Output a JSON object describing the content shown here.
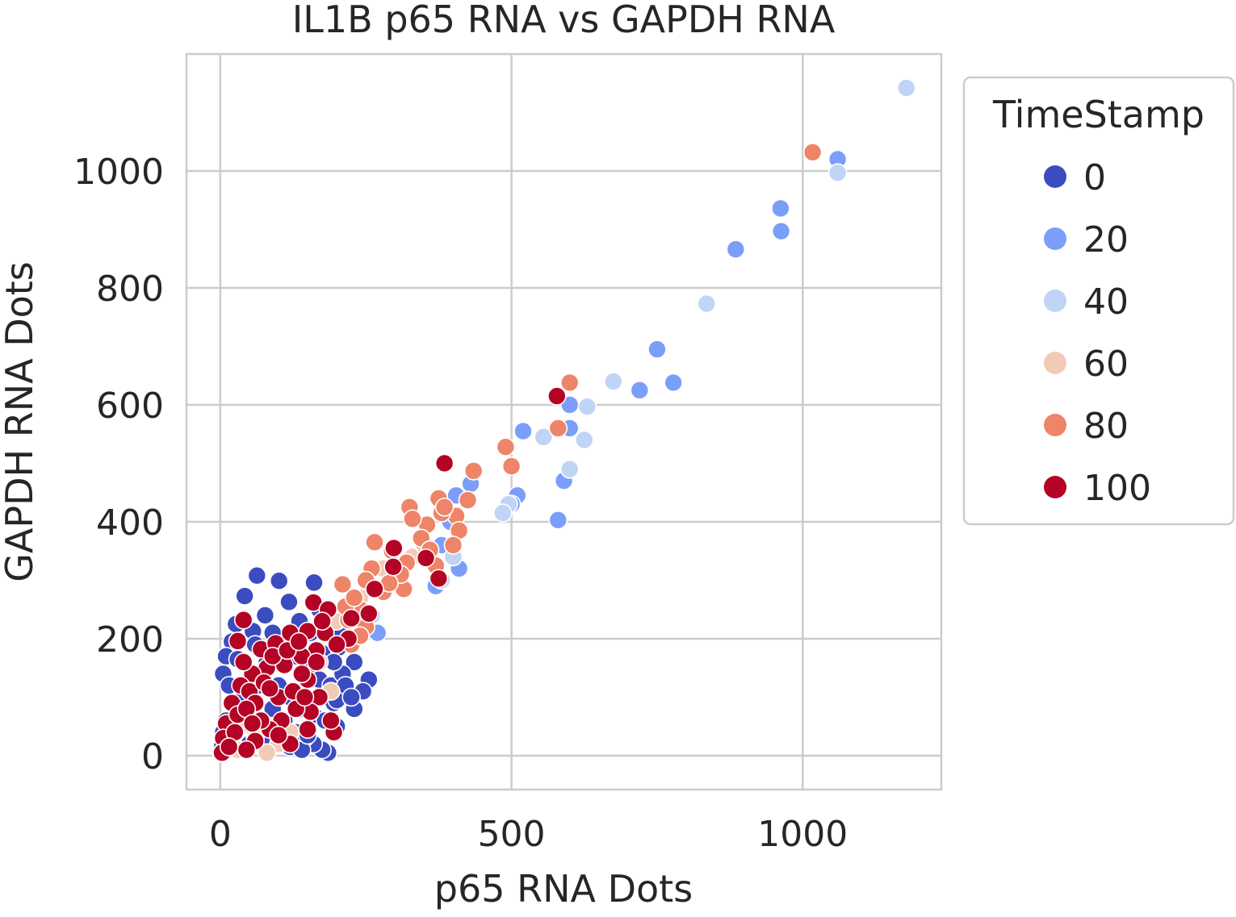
{
  "chart_data": {
    "type": "scatter",
    "title": "IL1B p65 RNA vs GAPDH RNA",
    "xlabel": "p65 RNA Dots",
    "ylabel": "GAPDH RNA Dots",
    "xlim": [
      -58,
      1238
    ],
    "ylim": [
      -58,
      1200
    ],
    "xticks": [
      0,
      500,
      1000
    ],
    "xtick_labels": [
      "0",
      "500",
      "1000"
    ],
    "yticks": [
      0,
      200,
      400,
      600,
      800,
      1000
    ],
    "ytick_labels": [
      "0",
      "200",
      "400",
      "600",
      "800",
      "1000"
    ],
    "grid": true,
    "legend": {
      "title": "TimeStamp",
      "placement": "outside-right-top",
      "entries": [
        {
          "label": "0",
          "color": "#3b4cc0"
        },
        {
          "label": "20",
          "color": "#7b9ff9"
        },
        {
          "label": "40",
          "color": "#c0d4f5"
        },
        {
          "label": "60",
          "color": "#f2cbb7"
        },
        {
          "label": "80",
          "color": "#ee8468"
        },
        {
          "label": "100",
          "color": "#b40426"
        }
      ]
    },
    "series": [
      {
        "name": "0",
        "color": "#3b4cc0",
        "points": [
          [
            63,
            308
          ],
          [
            101,
            299
          ],
          [
            161,
            296
          ],
          [
            42,
            273
          ],
          [
            118,
            263
          ],
          [
            77,
            240
          ],
          [
            136,
            230
          ],
          [
            27,
            225
          ],
          [
            56,
            213
          ],
          [
            170,
            250
          ],
          [
            188,
            240
          ],
          [
            210,
            210
          ],
          [
            203,
            185
          ],
          [
            230,
            160
          ],
          [
            255,
            130
          ],
          [
            245,
            110
          ],
          [
            230,
            80
          ],
          [
            195,
            90
          ],
          [
            185,
            5
          ],
          [
            175,
            10
          ],
          [
            160,
            20
          ],
          [
            145,
            30
          ],
          [
            20,
            195
          ],
          [
            10,
            170
          ],
          [
            5,
            140
          ],
          [
            30,
            165
          ],
          [
            15,
            120
          ],
          [
            40,
            100
          ],
          [
            25,
            75
          ],
          [
            10,
            60
          ],
          [
            5,
            40
          ],
          [
            3,
            15
          ],
          [
            2,
            5
          ],
          [
            60,
            190
          ],
          [
            90,
            210
          ],
          [
            110,
            185
          ],
          [
            130,
            170
          ],
          [
            150,
            150
          ],
          [
            170,
            130
          ],
          [
            190,
            120
          ],
          [
            210,
            140
          ],
          [
            80,
            160
          ],
          [
            100,
            120
          ],
          [
            120,
            100
          ],
          [
            140,
            80
          ],
          [
            160,
            70
          ],
          [
            180,
            60
          ],
          [
            200,
            50
          ],
          [
            60,
            40
          ],
          [
            80,
            30
          ],
          [
            100,
            20
          ],
          [
            120,
            15
          ],
          [
            140,
            10
          ],
          [
            50,
            20
          ],
          [
            70,
            60
          ],
          [
            90,
            80
          ],
          [
            110,
            60
          ],
          [
            130,
            40
          ],
          [
            150,
            35
          ],
          [
            200,
            95
          ],
          [
            215,
            120
          ],
          [
            225,
            100
          ],
          [
            175,
            175
          ],
          [
            155,
            210
          ],
          [
            195,
            160
          ],
          [
            65,
            120
          ]
        ]
      },
      {
        "name": "20",
        "color": "#7b9ff9",
        "points": [
          [
            1060,
            1020
          ],
          [
            963,
            897
          ],
          [
            778,
            638
          ],
          [
            720,
            625
          ],
          [
            600,
            600
          ],
          [
            585,
            560
          ],
          [
            590,
            470
          ],
          [
            580,
            403
          ],
          [
            520,
            555
          ],
          [
            510,
            445
          ],
          [
            430,
            465
          ],
          [
            405,
            445
          ],
          [
            395,
            400
          ],
          [
            380,
            360
          ],
          [
            270,
            210
          ],
          [
            962,
            936
          ],
          [
            885,
            866
          ],
          [
            750,
            695
          ],
          [
            600,
            560
          ],
          [
            500,
            430
          ],
          [
            410,
            320
          ],
          [
            370,
            290
          ]
        ]
      },
      {
        "name": "40",
        "color": "#c0d4f5",
        "points": [
          [
            1178,
            1142
          ],
          [
            1060,
            997
          ],
          [
            835,
            773
          ],
          [
            675,
            640
          ],
          [
            630,
            597
          ],
          [
            625,
            540
          ],
          [
            600,
            490
          ],
          [
            555,
            545
          ],
          [
            495,
            430
          ],
          [
            485,
            415
          ],
          [
            400,
            340
          ],
          [
            380,
            300
          ],
          [
            260,
            240
          ],
          [
            220,
            200
          ]
        ]
      },
      {
        "name": "60",
        "color": "#f2cbb7",
        "points": [
          [
            190,
            110
          ],
          [
            230,
            250
          ],
          [
            260,
            290
          ],
          [
            280,
            320
          ],
          [
            300,
            300
          ],
          [
            240,
            270
          ],
          [
            200,
            230
          ],
          [
            220,
            260
          ],
          [
            330,
            340
          ],
          [
            350,
            360
          ],
          [
            170,
            160
          ],
          [
            120,
            40
          ],
          [
            100,
            20
          ],
          [
            80,
            5
          ],
          [
            60,
            30
          ],
          [
            30,
            10
          ],
          [
            15,
            25
          ],
          [
            40,
            55
          ]
        ]
      },
      {
        "name": "80",
        "color": "#ee8468",
        "points": [
          [
            1017,
            1032
          ],
          [
            600,
            638
          ],
          [
            580,
            560
          ],
          [
            500,
            495
          ],
          [
            490,
            528
          ],
          [
            435,
            487
          ],
          [
            425,
            437
          ],
          [
            405,
            410
          ],
          [
            410,
            385
          ],
          [
            375,
            440
          ],
          [
            380,
            415
          ],
          [
            355,
            395
          ],
          [
            345,
            372
          ],
          [
            360,
            352
          ],
          [
            325,
            425
          ],
          [
            320,
            330
          ],
          [
            315,
            285
          ],
          [
            265,
            365
          ],
          [
            260,
            320
          ],
          [
            280,
            280
          ],
          [
            295,
            350
          ],
          [
            250,
            300
          ],
          [
            240,
            250
          ],
          [
            220,
            232
          ],
          [
            210,
            293
          ],
          [
            215,
            255
          ],
          [
            230,
            270
          ],
          [
            250,
            220
          ],
          [
            225,
            190
          ],
          [
            240,
            205
          ],
          [
            385,
            425
          ],
          [
            400,
            360
          ],
          [
            330,
            405
          ],
          [
            370,
            325
          ],
          [
            310,
            310
          ],
          [
            290,
            295
          ]
        ]
      },
      {
        "name": "100",
        "color": "#b40426",
        "points": [
          [
            385,
            500
          ],
          [
            578,
            615
          ],
          [
            375,
            303
          ],
          [
            353,
            338
          ],
          [
            298,
            355
          ],
          [
            297,
            323
          ],
          [
            265,
            285
          ],
          [
            255,
            243
          ],
          [
            225,
            235
          ],
          [
            220,
            200
          ],
          [
            160,
            262
          ],
          [
            185,
            250
          ],
          [
            180,
            210
          ],
          [
            40,
            232
          ],
          [
            30,
            196
          ],
          [
            70,
            182
          ],
          [
            95,
            192
          ],
          [
            120,
            210
          ],
          [
            150,
            213
          ],
          [
            165,
            180
          ],
          [
            140,
            170
          ],
          [
            110,
            155
          ],
          [
            80,
            150
          ],
          [
            55,
            140
          ],
          [
            35,
            120
          ],
          [
            20,
            90
          ],
          [
            10,
            55
          ],
          [
            5,
            30
          ],
          [
            3,
            5
          ],
          [
            50,
            110
          ],
          [
            75,
            125
          ],
          [
            100,
            100
          ],
          [
            125,
            110
          ],
          [
            150,
            130
          ],
          [
            170,
            100
          ],
          [
            155,
            75
          ],
          [
            130,
            80
          ],
          [
            105,
            60
          ],
          [
            85,
            45
          ],
          [
            60,
            25
          ],
          [
            45,
            10
          ],
          [
            25,
            40
          ],
          [
            195,
            40
          ],
          [
            190,
            60
          ],
          [
            120,
            20
          ],
          [
            100,
            35
          ],
          [
            165,
            160
          ],
          [
            140,
            140
          ],
          [
            90,
            170
          ],
          [
            60,
            90
          ],
          [
            30,
            70
          ],
          [
            15,
            15
          ],
          [
            70,
            60
          ],
          [
            45,
            80
          ],
          [
            115,
            180
          ],
          [
            135,
            195
          ],
          [
            175,
            230
          ],
          [
            200,
            190
          ],
          [
            145,
            100
          ],
          [
            85,
            115
          ],
          [
            40,
            160
          ],
          [
            55,
            55
          ],
          [
            150,
            45
          ]
        ]
      }
    ]
  }
}
